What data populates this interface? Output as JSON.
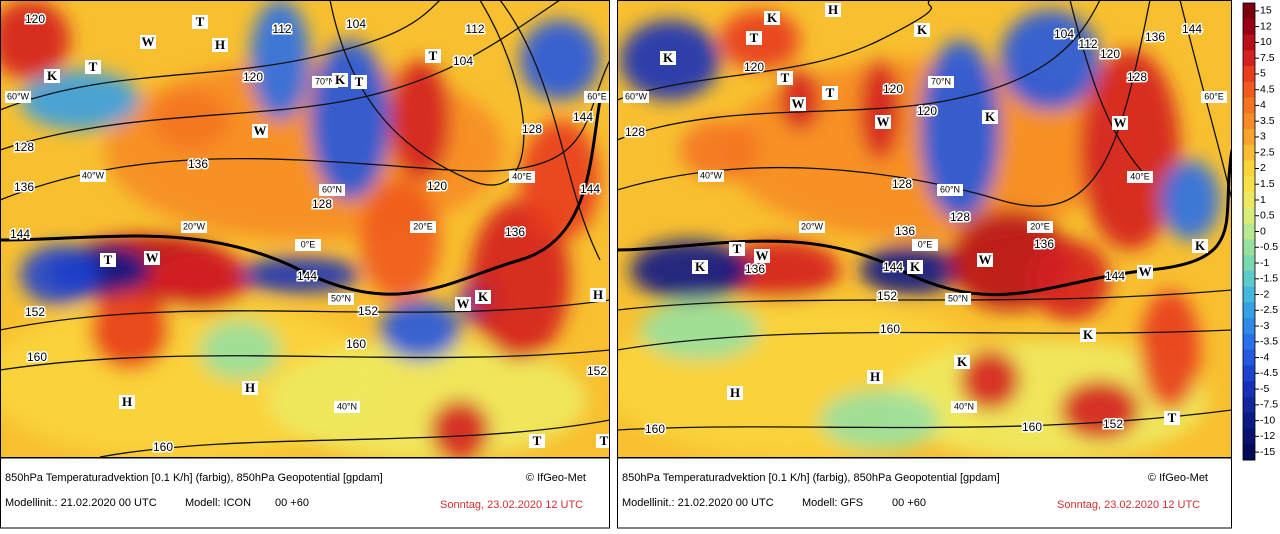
{
  "panels": [
    {
      "caption": "850hPa Temperaturadvektion [0.1 K/h] (farbig), 850hPa Geopotential [gpdam]",
      "copyright": "© IfGeo-Met",
      "init": "Modellinit.: 21.02.2020 00 UTC",
      "model": "Modell: ICON",
      "step": "00 +60",
      "valid": "Sonntag, 23.02.2020 12 UTC",
      "contour_labels": [
        "120",
        "112",
        "104",
        "120",
        "104",
        "112",
        "128",
        "136",
        "136",
        "128",
        "120",
        "128",
        "144",
        "144",
        "136",
        "144",
        "144",
        "152",
        "152",
        "160",
        "160",
        "160",
        "152"
      ],
      "markers": [
        "T",
        "W",
        "H",
        "K",
        "T",
        "K",
        "T",
        "W",
        "T",
        "T",
        "W",
        "W",
        "K",
        "H",
        "H",
        "H",
        "T",
        "T"
      ],
      "grid_labels": [
        "60°W",
        "70°N",
        "60°E",
        "40°W",
        "60°N",
        "40°E",
        "20°W",
        "20°E",
        "0°E",
        "50°N",
        "40°N"
      ]
    },
    {
      "caption": "850hPa Temperaturadvektion [0.1 K/h] (farbig), 850hPa Geopotential [gpdam]",
      "copyright": "© IfGeo-Met",
      "init": "Modellinit.: 21.02.2020 00 UTC",
      "model": "Modell: GFS",
      "step": "00 +60",
      "valid": "Sonntag, 23.02.2020 12 UTC",
      "contour_labels": [
        "120",
        "128",
        "120",
        "120",
        "104",
        "112",
        "120",
        "128",
        "136",
        "144",
        "128",
        "136",
        "128",
        "136",
        "144",
        "136",
        "144",
        "152",
        "160",
        "160",
        "160",
        "152"
      ],
      "markers": [
        "K",
        "T",
        "H",
        "K",
        "K",
        "T",
        "W",
        "T",
        "W",
        "K",
        "W",
        "T",
        "W",
        "K",
        "K",
        "W",
        "K",
        "W",
        "H",
        "H",
        "K",
        "K",
        "T"
      ],
      "grid_labels": [
        "60°W",
        "70°N",
        "60°E",
        "40°W",
        "60°N",
        "40°E",
        "20°W",
        "20°E",
        "0°E",
        "50°N",
        "40°N"
      ]
    }
  ],
  "colorbar": {
    "ticks": [
      "15",
      "12",
      "10",
      "7.5",
      "5",
      "4.5",
      "4",
      "3.5",
      "3",
      "2.5",
      "2",
      "1.5",
      "1",
      "0.5",
      "0",
      "-0.5",
      "-1",
      "-1.5",
      "-2",
      "-2.5",
      "-3",
      "-3.5",
      "-4",
      "-4.5",
      "-5",
      "-7.5",
      "-10",
      "-12",
      "-15"
    ],
    "colors": [
      "#7a0010",
      "#9a0015",
      "#b8101a",
      "#d42020",
      "#e83c1c",
      "#f05a1e",
      "#f47422",
      "#f68c26",
      "#f8a42c",
      "#f9bc32",
      "#fad43a",
      "#f8e048",
      "#eeea60",
      "#d8ec78",
      "#b8e890",
      "#98e0a0",
      "#7ad8b0",
      "#5ccac8",
      "#42b8dc",
      "#36a0e4",
      "#3088e8",
      "#2a70e8",
      "#2458e0",
      "#1e42d0",
      "#1830b8",
      "#12249e",
      "#0c1a86",
      "#08126e",
      "#040a58"
    ]
  }
}
